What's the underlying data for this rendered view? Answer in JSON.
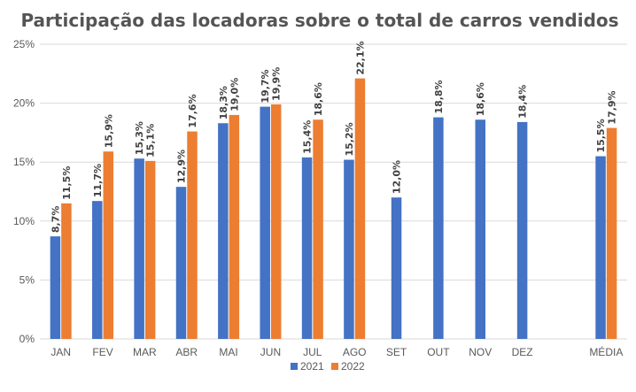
{
  "chart_data": {
    "type": "bar",
    "title": "Participação das locadoras sobre o total de carros vendidos",
    "categories": [
      "JAN",
      "FEV",
      "MAR",
      "ABR",
      "MAI",
      "JUN",
      "JUL",
      "AGO",
      "SET",
      "OUT",
      "NOV",
      "DEZ",
      "",
      "MÉDIA"
    ],
    "series": [
      {
        "name": "2021",
        "color": "#4472C4",
        "values": [
          8.7,
          11.7,
          15.3,
          12.9,
          18.3,
          19.7,
          15.4,
          15.2,
          12.0,
          18.8,
          18.6,
          18.4,
          null,
          15.5
        ],
        "labels": [
          "8,7%",
          "11,7%",
          "15,3%",
          "12,9%",
          "18,3%",
          "19,7%",
          "15,4%",
          "15,2%",
          "12,0%",
          "18,8%",
          "18,6%",
          "18,4%",
          null,
          "15,5%"
        ]
      },
      {
        "name": "2022",
        "color": "#ED7D31",
        "values": [
          11.5,
          15.9,
          15.1,
          17.6,
          19.0,
          19.9,
          18.6,
          22.1,
          null,
          null,
          null,
          null,
          null,
          17.9
        ],
        "labels": [
          "11,5%",
          "15,9%",
          "15,1%",
          "17,6%",
          "19,0%",
          "19,9%",
          "18,6%",
          "22,1%",
          null,
          null,
          null,
          null,
          null,
          "17,9%"
        ]
      }
    ],
    "ylim": [
      0,
      25
    ],
    "yticks": [
      0,
      5,
      10,
      15,
      20,
      25
    ],
    "ytick_labels": [
      "0%",
      "5%",
      "10%",
      "15%",
      "20%",
      "25%"
    ],
    "xlabel": "",
    "ylabel": "",
    "grid": true,
    "legend": "bottom-center"
  }
}
